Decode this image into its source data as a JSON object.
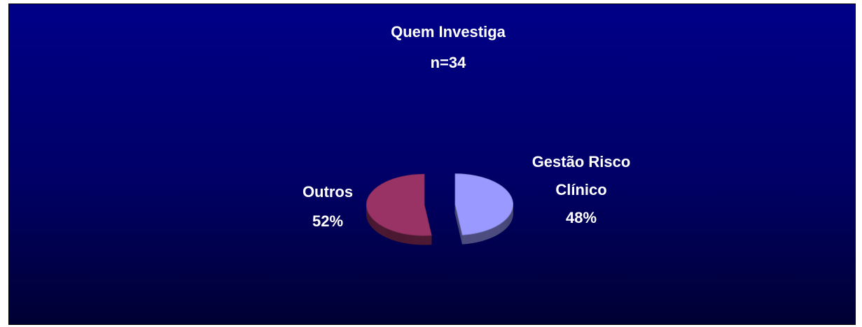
{
  "chart_data": {
    "type": "pie",
    "title": "Quem Investiga",
    "subtitle": "n=34",
    "categories": [
      "Gestão Risco Clínico",
      "Outros"
    ],
    "values": [
      48,
      52
    ],
    "value_labels": [
      "48%",
      "52%"
    ],
    "colors": [
      "#9999ff",
      "#993366"
    ]
  }
}
